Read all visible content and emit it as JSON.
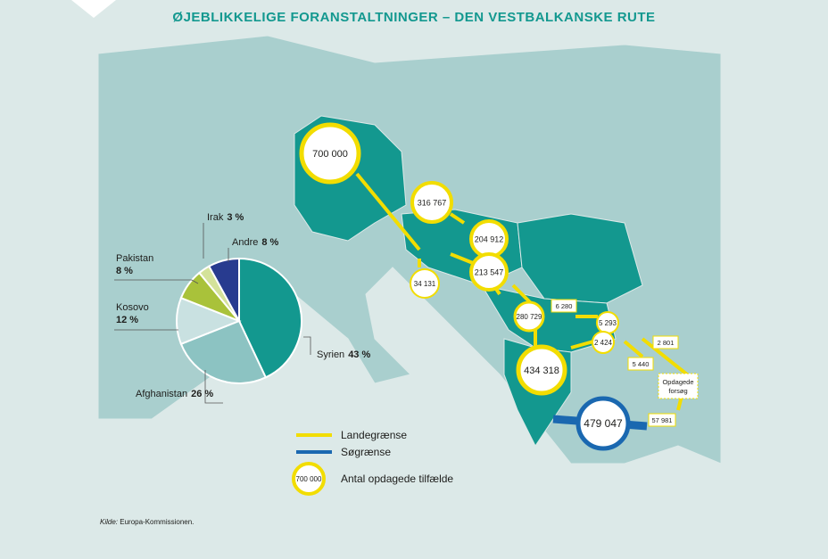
{
  "title": "ØJEBLIKKELIGE FORANSTALTNINGER – DEN VESTBALKANSKE RUTE",
  "chart_data": {
    "type": "pie",
    "categories": [
      "Syrien",
      "Afghanistan",
      "Kosovo",
      "Pakistan",
      "Irak",
      "Andre"
    ],
    "values": [
      43,
      26,
      12,
      8,
      3,
      8
    ],
    "value_labels": [
      "43 %",
      "26 %",
      "12 %",
      "8 %",
      "3 %",
      "8 %"
    ],
    "colors": [
      "#13988f",
      "#8cc3c2",
      "#c9e1e1",
      "#a9c23a",
      "#d4e29a",
      "#283b8f"
    ]
  },
  "map": {
    "markers": [
      "700 000",
      "316 767",
      "204 912",
      "213 547",
      "34 131",
      "280 729",
      "434 318",
      "479 047",
      "5 293",
      "2 424"
    ],
    "boxes": [
      "6 280",
      "2 801",
      "5 440",
      "57 981",
      "Opdagede forsøg"
    ],
    "legend": {
      "land": "Landegrænse",
      "sea": "Søgrænse",
      "circle_sample": "700 000",
      "circle": "Antal opdagede tilfælde"
    }
  },
  "source": {
    "prefix": "Kilde:",
    "text": "Europa-Kommissionen."
  }
}
